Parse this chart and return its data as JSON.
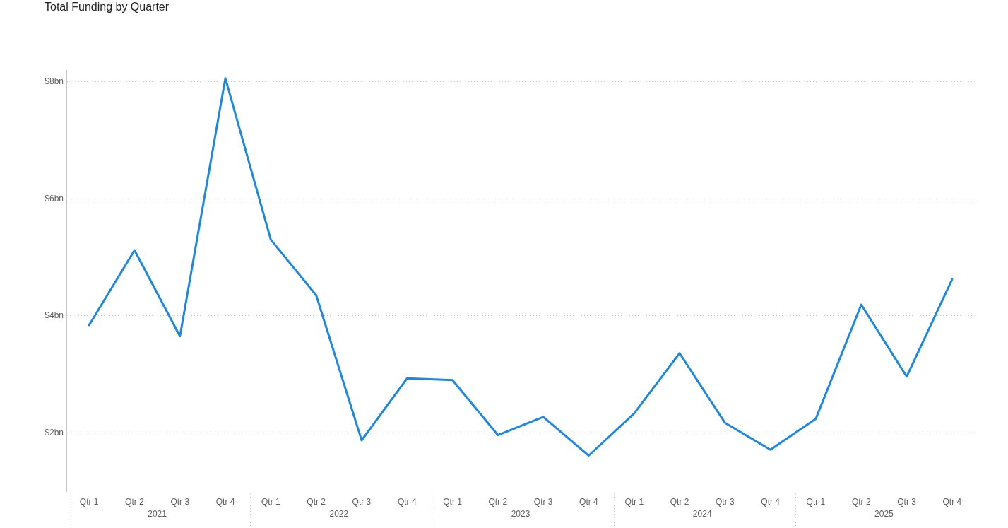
{
  "chart_data": {
    "type": "line",
    "title": "Total Funding by Quarter",
    "categories": [
      "Qtr 1",
      "Qtr 2",
      "Qtr 3",
      "Qtr 4",
      "Qtr 1",
      "Qtr 2",
      "Qtr 3",
      "Qtr 4",
      "Qtr 1",
      "Qtr 2",
      "Qtr 3",
      "Qtr 4",
      "Qtr 1",
      "Qtr 2",
      "Qtr 3",
      "Qtr 4",
      "Qtr 1",
      "Qtr 2",
      "Qtr 3",
      "Qtr 4"
    ],
    "series": [
      {
        "color": "#1b87e6",
        "values": [
          3.84,
          5.12,
          3.65,
          8.06,
          5.3,
          4.35,
          1.87,
          2.93,
          2.9,
          1.96,
          2.27,
          1.61,
          2.33,
          3.36,
          2.17,
          1.71,
          2.24,
          4.19,
          2.96,
          4.62
        ]
      }
    ],
    "ylim": [
      1,
      8.2
    ],
    "yticks": [
      {
        "value": 2,
        "label": "$2bn"
      },
      {
        "value": 4,
        "label": "$4bn"
      },
      {
        "value": 6,
        "label": "$6bn"
      },
      {
        "value": 8,
        "label": "$8bn"
      }
    ],
    "grid": "y",
    "legend": false,
    "marker": "none",
    "line_style": "solid",
    "annotations": [
      "2021",
      "2022",
      "2023",
      "2024",
      "2025"
    ]
  }
}
